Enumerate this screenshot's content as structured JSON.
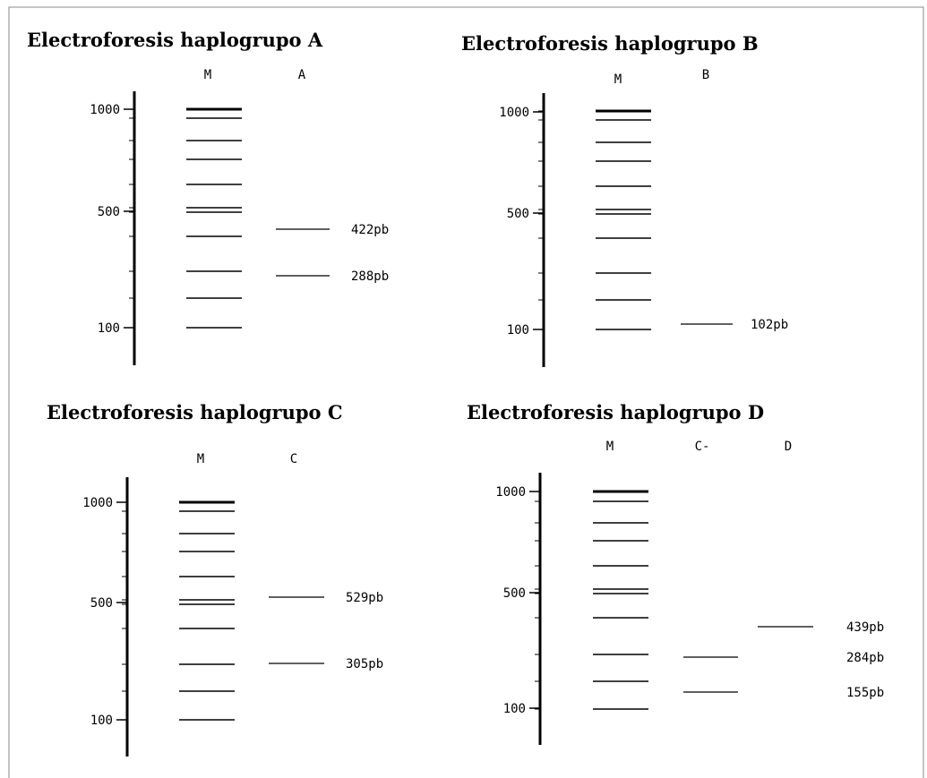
{
  "panels": [
    {
      "title": "Electroforesis haplogrupo A",
      "lanes": [
        "M",
        "A"
      ],
      "ticks": [
        "1000",
        "500",
        "100"
      ],
      "bands": [
        "422pb",
        "288pb"
      ]
    },
    {
      "title": "Electroforesis haplogrupo B",
      "lanes": [
        "M",
        "B"
      ],
      "ticks": [
        "1000",
        "500",
        "100"
      ],
      "bands": [
        "102pb"
      ]
    },
    {
      "title": "Electroforesis haplogrupo C",
      "lanes": [
        "M",
        "C"
      ],
      "ticks": [
        "1000",
        "500",
        "100"
      ],
      "bands": [
        "529pb",
        "305pb"
      ]
    },
    {
      "title": "Electroforesis haplogrupo D",
      "lanes": [
        "M",
        "C-",
        "D"
      ],
      "ticks": [
        "1000",
        "500",
        "100"
      ],
      "bands": [
        "439pb",
        "284pb",
        "155pb"
      ]
    }
  ]
}
